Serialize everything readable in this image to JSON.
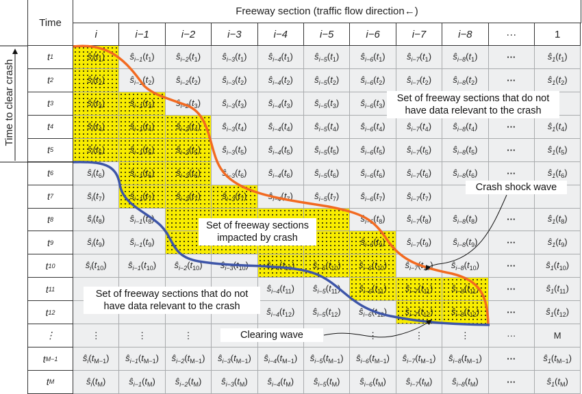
{
  "header": {
    "time_label": "Time",
    "section_label": "Freeway section (traffic flow direction←)",
    "columns": [
      "i",
      "i−1",
      "i−2",
      "i−3",
      "i−4",
      "i−5",
      "i−6",
      "i−7",
      "i−8",
      "···",
      "1"
    ]
  },
  "cell_symbol": "ŝ",
  "column_subscripts": [
    "i",
    "i−1",
    "i−2",
    "i−3",
    "i−4",
    "i−5",
    "i−6",
    "i−7",
    "i−8",
    null,
    "1"
  ],
  "ellipsis": "···",
  "rows": [
    {
      "t": "1"
    },
    {
      "t": "2"
    },
    {
      "t": "3"
    },
    {
      "t": "4"
    },
    {
      "t": "5"
    },
    {
      "t": "6"
    },
    {
      "t": "7"
    },
    {
      "t": "8"
    },
    {
      "t": "9"
    },
    {
      "t": "10"
    },
    {
      "t": "11"
    },
    {
      "t": "12"
    },
    {
      "time_text": "⋮",
      "cells": [
        "⋮",
        "⋮",
        "⋮",
        "⋮",
        "⋮",
        "⋮",
        "⋮",
        "⋮",
        "⋮",
        "···",
        "M"
      ]
    },
    {
      "t": "M−1"
    },
    {
      "t": "M"
    }
  ],
  "impacted_cells": {
    "i": [
      1,
      5
    ],
    "i−1": [
      3,
      7
    ],
    "i−2": [
      4,
      9
    ],
    "i−3": [
      7,
      9
    ],
    "i−4": [
      8,
      10
    ],
    "i−5": [
      8,
      10
    ],
    "i−6": [
      9,
      11
    ],
    "i−7": [
      11,
      12
    ],
    "i−8": [
      11,
      12
    ]
  },
  "annotations": {
    "time_to_clear": "Time to clear crash",
    "no_data_top": "Set of freeway sections that do not have data relevant to the crash",
    "impacted": "Set of freeway sections impacted by crash",
    "no_data_bottom": "Set of freeway sections that do not have data relevant to the crash",
    "shock_wave": "Crash shock wave",
    "clearing_wave": "Clearing wave"
  },
  "colors": {
    "impacted": "#f8ec00",
    "shock_wave_curve": "#f26a21",
    "clearing_wave_curve": "#3d55a8",
    "cell": "#eeeff0"
  }
}
